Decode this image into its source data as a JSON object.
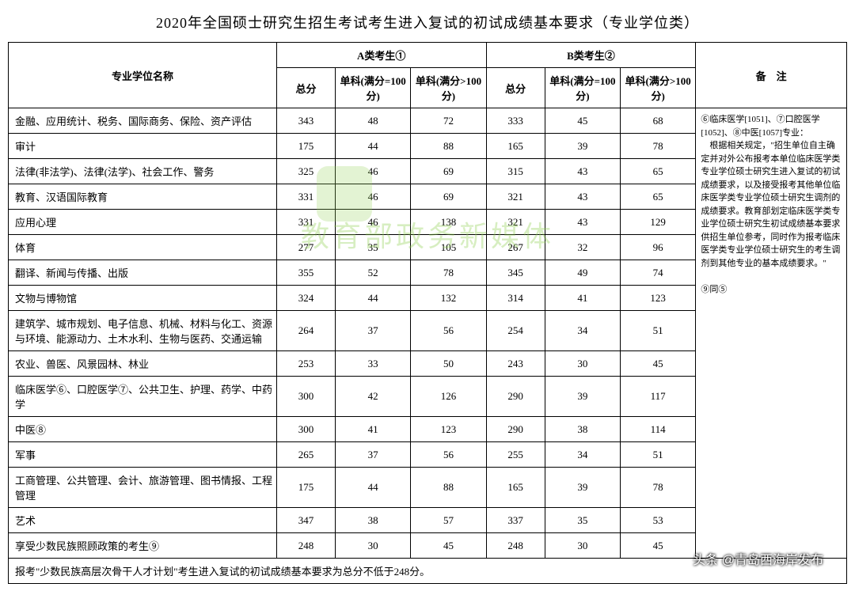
{
  "title": "2020年全国硕士研究生招生考试考生进入复试的初试成绩基本要求（专业学位类）",
  "header": {
    "major": "专业学位名称",
    "groupA": "A类考生①",
    "groupB": "B类考生②",
    "notes": "备　注",
    "total": "总分",
    "single100": "单科(满分=100分)",
    "singleOver100": "单科(满分>100分)"
  },
  "rows": [
    {
      "name": "金融、应用统计、税务、国际商务、保险、资产评估",
      "a": [
        343,
        48,
        72
      ],
      "b": [
        333,
        45,
        68
      ]
    },
    {
      "name": "审计",
      "a": [
        175,
        44,
        88
      ],
      "b": [
        165,
        39,
        78
      ]
    },
    {
      "name": "法律(非法学)、法律(法学)、社会工作、警务",
      "a": [
        325,
        46,
        69
      ],
      "b": [
        315,
        43,
        65
      ]
    },
    {
      "name": "教育、汉语国际教育",
      "a": [
        331,
        46,
        69
      ],
      "b": [
        321,
        43,
        65
      ]
    },
    {
      "name": "应用心理",
      "a": [
        331,
        46,
        138
      ],
      "b": [
        321,
        43,
        129
      ]
    },
    {
      "name": "体育",
      "a": [
        277,
        35,
        105
      ],
      "b": [
        267,
        32,
        96
      ]
    },
    {
      "name": "翻译、新闻与传播、出版",
      "a": [
        355,
        52,
        78
      ],
      "b": [
        345,
        49,
        74
      ]
    },
    {
      "name": "文物与博物馆",
      "a": [
        324,
        44,
        132
      ],
      "b": [
        314,
        41,
        123
      ]
    },
    {
      "name": "建筑学、城市规划、电子信息、机械、材料与化工、资源与环境、能源动力、土木水利、生物与医药、交通运输",
      "a": [
        264,
        37,
        56
      ],
      "b": [
        254,
        34,
        51
      ]
    },
    {
      "name": "农业、兽医、风景园林、林业",
      "a": [
        253,
        33,
        50
      ],
      "b": [
        243,
        30,
        45
      ]
    },
    {
      "name": "临床医学⑥、口腔医学⑦、公共卫生、护理、药学、中药学",
      "a": [
        300,
        42,
        126
      ],
      "b": [
        290,
        39,
        117
      ]
    },
    {
      "name": "中医⑧",
      "a": [
        300,
        41,
        123
      ],
      "b": [
        290,
        38,
        114
      ]
    },
    {
      "name": "军事",
      "a": [
        265,
        37,
        56
      ],
      "b": [
        255,
        34,
        51
      ]
    },
    {
      "name": "工商管理、公共管理、会计、旅游管理、图书情报、工程管理",
      "a": [
        175,
        44,
        88
      ],
      "b": [
        165,
        39,
        78
      ]
    },
    {
      "name": "艺术",
      "a": [
        347,
        38,
        57
      ],
      "b": [
        337,
        35,
        53
      ]
    },
    {
      "name": "享受少数民族照顾政策的考生⑨",
      "a": [
        248,
        30,
        45
      ],
      "b": [
        248,
        30,
        45
      ]
    }
  ],
  "notes_text": "⑥临床医学[1051]、⑦口腔医学[1052]、⑧中医[1057]专业：\n　根据相关规定，\"招生单位自主确定并对外公布报考本单位临床医学类专业学位硕士研究生进入复试的初试成绩要求，以及接受报考其他单位临床医学类专业学位硕士研究生调剂的成绩要求。教育部划定临床医学类专业学位硕士研究生初试成绩基本要求供招生单位参考，同时作为报考临床医学类专业学位硕士研究生的考生调剂到其他专业的基本成绩要求。\"\n\n⑨同⑤",
  "footer": "报考\"少数民族高层次骨干人才计划\"考生进入复试的初试成绩基本要求为总分不低于248分。",
  "watermark": "教育部政务新媒体",
  "corner_watermark": "头条 @青岛西海岸发布",
  "style": {
    "border_color": "#000000",
    "bg": "#ffffff",
    "font": "SimSun",
    "title_fontsize": 18,
    "cell_fontsize": 13,
    "notes_fontsize": 11,
    "watermark_color": "#8fd14f",
    "col_widths_pct": [
      32,
      7,
      9,
      9,
      7,
      9,
      9,
      18
    ]
  }
}
